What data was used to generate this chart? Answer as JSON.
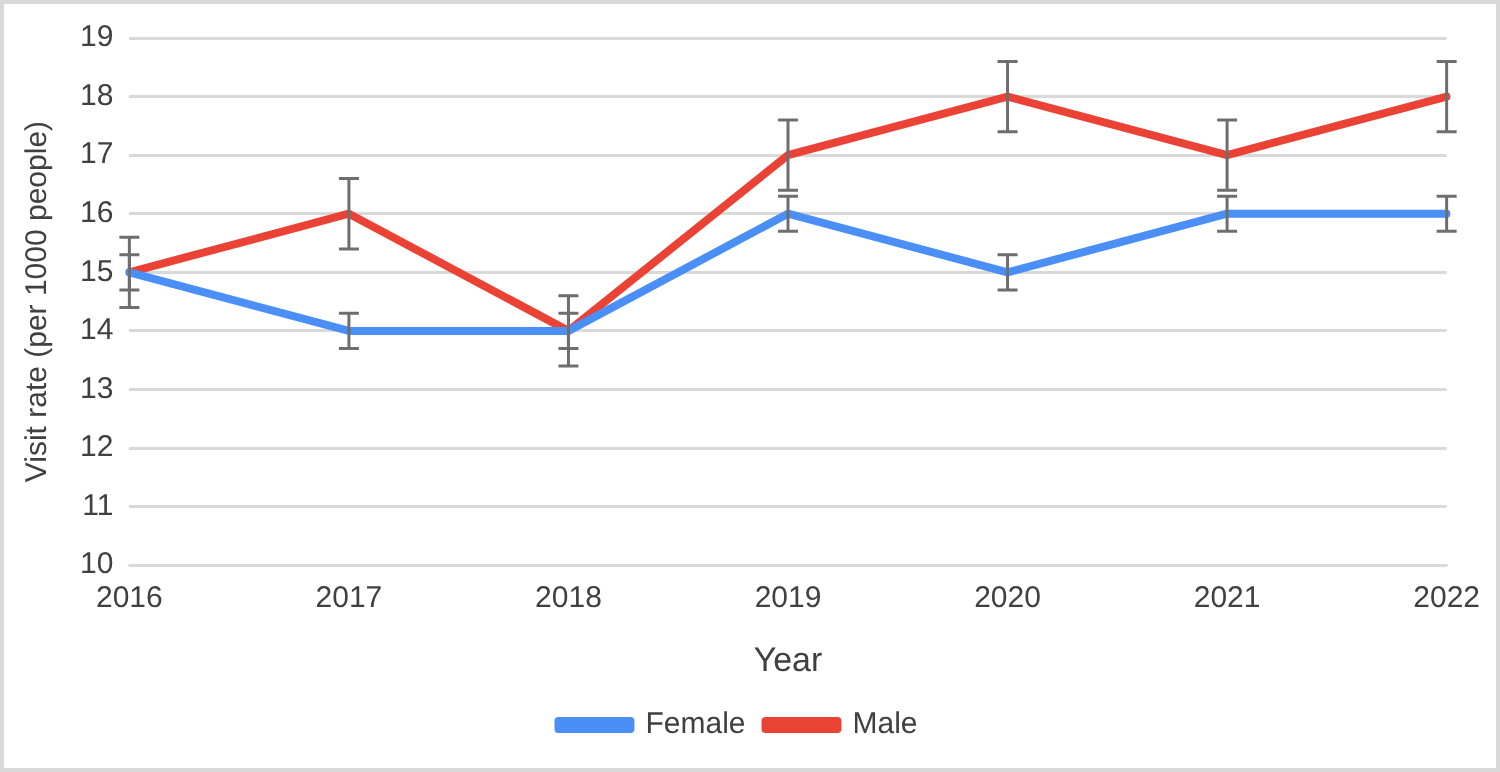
{
  "chart_data": {
    "type": "line",
    "xlabel": "Year",
    "ylabel": "Visit rate (per 1000 people)",
    "categories": [
      "2016",
      "2017",
      "2018",
      "2019",
      "2020",
      "2021",
      "2022"
    ],
    "series": [
      {
        "name": "Female",
        "color": "#4a8ff5",
        "values": [
          15,
          14,
          14,
          16,
          15,
          16,
          16
        ],
        "errors": [
          0.3,
          0.3,
          0.3,
          0.3,
          0.3,
          0.3,
          0.3
        ]
      },
      {
        "name": "Male",
        "color": "#ea4335",
        "values": [
          15,
          16,
          14,
          17,
          18,
          17,
          18
        ],
        "errors": [
          0.6,
          0.6,
          0.6,
          0.6,
          0.6,
          0.6,
          0.6
        ]
      }
    ],
    "ylim": [
      10,
      19
    ],
    "yticks": [
      10,
      11,
      12,
      13,
      14,
      15,
      16,
      17,
      18,
      19
    ],
    "grid": "y",
    "legend": "bottom",
    "marker": "none",
    "line_style": "solid"
  }
}
